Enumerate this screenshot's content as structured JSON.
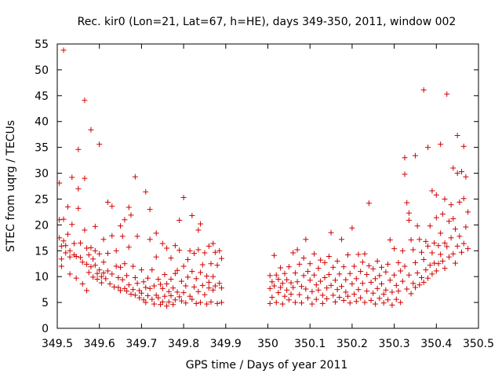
{
  "chart_data": {
    "type": "scatter",
    "title": "Rec. kir0 (Lon=21, Lat=67, h=HE), days 349-350, 2011, window 002",
    "xlabel": "GPS time / Days of year 2011",
    "ylabel": "STEC from uqrg / TECUs",
    "xlim": [
      349.5,
      350.5
    ],
    "ylim": [
      0,
      55
    ],
    "xticks": [
      349.5,
      349.6,
      349.7,
      349.8,
      349.9,
      350,
      350.1,
      350.2,
      350.3,
      350.4,
      350.5
    ],
    "xtick_labels": [
      "349.5",
      "349.6",
      "349.7",
      "349.8",
      "349.9",
      "350",
      "350.1",
      "350.2",
      "350.3",
      "350.4",
      "350.5"
    ],
    "yticks": [
      0,
      5,
      10,
      15,
      20,
      25,
      30,
      35,
      40,
      45,
      50,
      55
    ],
    "ytick_labels": [
      "0",
      "5",
      "10",
      "15",
      "20",
      "25",
      "30",
      "35",
      "40",
      "45",
      "50",
      "55"
    ],
    "grid": false,
    "legend": "none",
    "marker": "plus",
    "color": "#d00000",
    "points": [
      [
        349.505,
        28.1
      ],
      [
        349.505,
        21.0
      ],
      [
        349.505,
        17.5
      ],
      [
        349.51,
        15.9
      ],
      [
        349.51,
        13.4
      ],
      [
        349.51,
        12.0
      ],
      [
        349.515,
        53.8
      ],
      [
        349.515,
        21.1
      ],
      [
        349.515,
        16.9
      ],
      [
        349.52,
        16.0
      ],
      [
        349.52,
        14.6
      ],
      [
        349.525,
        23.5
      ],
      [
        349.525,
        18.2
      ],
      [
        349.53,
        15.0
      ],
      [
        349.53,
        13.8
      ],
      [
        349.53,
        10.5
      ],
      [
        349.535,
        29.2
      ],
      [
        349.535,
        20.1
      ],
      [
        349.54,
        16.4
      ],
      [
        349.54,
        14.2
      ],
      [
        349.545,
        13.9
      ],
      [
        349.545,
        9.7
      ],
      [
        349.55,
        34.6
      ],
      [
        349.55,
        27.0
      ],
      [
        349.55,
        23.2
      ],
      [
        349.555,
        16.5
      ],
      [
        349.555,
        13.7
      ],
      [
        349.56,
        12.8
      ],
      [
        349.56,
        8.6
      ],
      [
        349.565,
        44.1
      ],
      [
        349.565,
        29.0
      ],
      [
        349.565,
        19.0
      ],
      [
        349.57,
        15.5
      ],
      [
        349.57,
        12.4
      ],
      [
        349.57,
        7.3
      ],
      [
        349.575,
        14.2
      ],
      [
        349.575,
        10.8
      ],
      [
        349.58,
        38.4
      ],
      [
        349.58,
        15.6
      ],
      [
        349.58,
        11.9
      ],
      [
        349.585,
        13.4
      ],
      [
        349.585,
        9.9
      ],
      [
        349.59,
        19.7
      ],
      [
        349.59,
        15.0
      ],
      [
        349.59,
        12.2
      ],
      [
        349.595,
        10.6
      ],
      [
        349.595,
        9.5
      ],
      [
        349.6,
        35.6
      ],
      [
        349.6,
        14.4
      ],
      [
        349.6,
        11.3
      ],
      [
        349.605,
        10.0
      ],
      [
        349.605,
        8.8
      ],
      [
        349.61,
        17.2
      ],
      [
        349.61,
        12.8
      ],
      [
        349.61,
        10.7
      ],
      [
        349.615,
        9.6
      ],
      [
        349.62,
        24.4
      ],
      [
        349.62,
        14.5
      ],
      [
        349.62,
        11.1
      ],
      [
        349.625,
        8.6
      ],
      [
        349.63,
        23.6
      ],
      [
        349.63,
        17.9
      ],
      [
        349.63,
        10.5
      ],
      [
        349.635,
        8.0
      ],
      [
        349.64,
        15.0
      ],
      [
        349.64,
        12.0
      ],
      [
        349.645,
        9.8
      ],
      [
        349.645,
        7.9
      ],
      [
        349.65,
        19.8
      ],
      [
        349.65,
        11.8
      ],
      [
        349.65,
        7.3
      ],
      [
        349.655,
        17.8
      ],
      [
        349.655,
        9.4
      ],
      [
        349.66,
        21.0
      ],
      [
        349.66,
        12.5
      ],
      [
        349.66,
        7.7
      ],
      [
        349.665,
        10.2
      ],
      [
        349.665,
        7.2
      ],
      [
        349.67,
        23.4
      ],
      [
        349.67,
        15.7
      ],
      [
        349.67,
        8.4
      ],
      [
        349.675,
        21.9
      ],
      [
        349.675,
        6.6
      ],
      [
        349.68,
        12.0
      ],
      [
        349.68,
        7.5
      ],
      [
        349.685,
        29.3
      ],
      [
        349.685,
        9.8
      ],
      [
        349.685,
        6.4
      ],
      [
        349.69,
        17.8
      ],
      [
        349.69,
        8.7
      ],
      [
        349.695,
        7.3
      ],
      [
        349.695,
        5.9
      ],
      [
        349.7,
        11.3
      ],
      [
        349.7,
        6.8
      ],
      [
        349.705,
        9.0
      ],
      [
        349.705,
        5.5
      ],
      [
        349.71,
        26.4
      ],
      [
        349.71,
        7.9
      ],
      [
        349.71,
        5.0
      ],
      [
        349.715,
        9.7
      ],
      [
        349.715,
        6.3
      ],
      [
        349.72,
        23.0
      ],
      [
        349.72,
        17.2
      ],
      [
        349.72,
        7.7
      ],
      [
        349.725,
        11.3
      ],
      [
        349.725,
        5.6
      ],
      [
        349.73,
        8.2
      ],
      [
        349.73,
        4.7
      ],
      [
        349.735,
        18.4
      ],
      [
        349.735,
        13.8
      ],
      [
        349.735,
        6.4
      ],
      [
        349.74,
        9.5
      ],
      [
        349.74,
        5.9
      ],
      [
        349.745,
        8.5
      ],
      [
        349.745,
        4.6
      ],
      [
        349.75,
        16.4
      ],
      [
        349.75,
        7.7
      ],
      [
        349.75,
        5.1
      ],
      [
        349.755,
        10.4
      ],
      [
        349.755,
        6.2
      ],
      [
        349.76,
        15.5
      ],
      [
        349.76,
        8.6
      ],
      [
        349.76,
        4.3
      ],
      [
        349.765,
        7.1
      ],
      [
        349.765,
        5.1
      ],
      [
        349.77,
        13.6
      ],
      [
        349.77,
        9.5
      ],
      [
        349.77,
        6.3
      ],
      [
        349.775,
        7.8
      ],
      [
        349.775,
        4.6
      ],
      [
        349.78,
        16.0
      ],
      [
        349.78,
        10.6
      ],
      [
        349.78,
        5.5
      ],
      [
        349.785,
        11.2
      ],
      [
        349.785,
        7.0
      ],
      [
        349.79,
        20.9
      ],
      [
        349.79,
        15.1
      ],
      [
        349.79,
        6.1
      ],
      [
        349.795,
        9.1
      ],
      [
        349.795,
        5.3
      ],
      [
        349.8,
        25.3
      ],
      [
        349.8,
        12.0
      ],
      [
        349.8,
        6.9
      ],
      [
        349.805,
        8.2
      ],
      [
        349.805,
        4.9
      ],
      [
        349.81,
        13.3
      ],
      [
        349.81,
        9.9
      ],
      [
        349.815,
        15.0
      ],
      [
        349.815,
        6.2
      ],
      [
        349.82,
        21.8
      ],
      [
        349.82,
        11.0
      ],
      [
        349.82,
        5.6
      ],
      [
        349.825,
        14.5
      ],
      [
        349.825,
        8.0
      ],
      [
        349.83,
        9.6
      ],
      [
        349.83,
        4.8
      ],
      [
        349.835,
        19.0
      ],
      [
        349.835,
        15.2
      ],
      [
        349.835,
        7.1
      ],
      [
        349.84,
        20.2
      ],
      [
        349.84,
        10.8
      ],
      [
        349.84,
        5.0
      ],
      [
        349.845,
        12.3
      ],
      [
        349.845,
        8.3
      ],
      [
        349.85,
        14.6
      ],
      [
        349.85,
        6.5
      ],
      [
        349.855,
        10.1
      ],
      [
        349.855,
        4.7
      ],
      [
        349.86,
        15.9
      ],
      [
        349.86,
        8.9
      ],
      [
        349.86,
        7.8
      ],
      [
        349.865,
        12.5
      ],
      [
        349.865,
        5.1
      ],
      [
        349.87,
        16.4
      ],
      [
        349.87,
        10.0
      ],
      [
        349.87,
        7.4
      ],
      [
        349.875,
        14.7
      ],
      [
        349.875,
        8.2
      ],
      [
        349.88,
        12.2
      ],
      [
        349.88,
        4.8
      ],
      [
        349.885,
        15.0
      ],
      [
        349.885,
        8.7
      ],
      [
        349.89,
        13.5
      ],
      [
        349.89,
        7.8
      ],
      [
        349.89,
        5.0
      ],
      [
        350.005,
        10.2
      ],
      [
        350.005,
        7.7
      ],
      [
        350.005,
        4.8
      ],
      [
        350.01,
        9.0
      ],
      [
        350.01,
        6.0
      ],
      [
        350.015,
        14.1
      ],
      [
        350.015,
        8.2
      ],
      [
        350.02,
        10.3
      ],
      [
        350.02,
        5.0
      ],
      [
        350.025,
        9.5
      ],
      [
        350.025,
        6.9
      ],
      [
        350.03,
        11.7
      ],
      [
        350.03,
        7.9
      ],
      [
        350.035,
        8.7
      ],
      [
        350.035,
        4.7
      ],
      [
        350.04,
        10.6
      ],
      [
        350.04,
        6.2
      ],
      [
        350.045,
        9.4
      ],
      [
        350.045,
        7.4
      ],
      [
        350.05,
        11.9
      ],
      [
        350.05,
        5.5
      ],
      [
        350.055,
        8.8
      ],
      [
        350.055,
        6.6
      ],
      [
        350.06,
        14.6
      ],
      [
        350.06,
        7.9
      ],
      [
        350.065,
        10.7
      ],
      [
        350.065,
        5.0
      ],
      [
        350.07,
        15.2
      ],
      [
        350.07,
        9.0
      ],
      [
        350.075,
        12.4
      ],
      [
        350.075,
        6.5
      ],
      [
        350.08,
        8.1
      ],
      [
        350.08,
        4.9
      ],
      [
        350.085,
        13.6
      ],
      [
        350.085,
        10.2
      ],
      [
        350.09,
        17.2
      ],
      [
        350.09,
        7.6
      ],
      [
        350.095,
        11.0
      ],
      [
        350.095,
        5.9
      ],
      [
        350.1,
        12.5
      ],
      [
        350.1,
        9.3
      ],
      [
        350.105,
        7.1
      ],
      [
        350.105,
        4.7
      ],
      [
        350.11,
        14.4
      ],
      [
        350.11,
        10.3
      ],
      [
        350.115,
        8.4
      ],
      [
        350.115,
        5.6
      ],
      [
        350.12,
        11.6
      ],
      [
        350.12,
        7.4
      ],
      [
        350.125,
        13.2
      ],
      [
        350.125,
        9.1
      ],
      [
        350.13,
        6.4
      ],
      [
        350.13,
        4.8
      ],
      [
        350.135,
        12.7
      ],
      [
        350.135,
        9.8
      ],
      [
        350.14,
        7.8
      ],
      [
        350.14,
        5.7
      ],
      [
        350.145,
        13.9
      ],
      [
        350.145,
        10.4
      ],
      [
        350.15,
        18.5
      ],
      [
        350.15,
        8.3
      ],
      [
        350.155,
        11.8
      ],
      [
        350.155,
        6.4
      ],
      [
        350.16,
        9.3
      ],
      [
        350.16,
        5.1
      ],
      [
        350.165,
        13.0
      ],
      [
        350.165,
        7.5
      ],
      [
        350.17,
        10.5
      ],
      [
        350.17,
        6.0
      ],
      [
        350.175,
        17.2
      ],
      [
        350.175,
        8.1
      ],
      [
        350.18,
        11.9
      ],
      [
        350.18,
        5.4
      ],
      [
        350.185,
        9.4
      ],
      [
        350.185,
        7.0
      ],
      [
        350.19,
        14.2
      ],
      [
        350.19,
        6.2
      ],
      [
        350.195,
        10.6
      ],
      [
        350.195,
        4.9
      ],
      [
        350.2,
        19.4
      ],
      [
        350.2,
        8.6
      ],
      [
        350.205,
        12.0
      ],
      [
        350.205,
        6.6
      ],
      [
        350.21,
        9.6
      ],
      [
        350.21,
        5.2
      ],
      [
        350.215,
        14.3
      ],
      [
        350.215,
        7.5
      ],
      [
        350.22,
        11.0
      ],
      [
        350.22,
        5.9
      ],
      [
        350.225,
        12.8
      ],
      [
        350.225,
        8.7
      ],
      [
        350.23,
        14.4
      ],
      [
        350.23,
        5.0
      ],
      [
        350.235,
        10.4
      ],
      [
        350.235,
        7.2
      ],
      [
        350.24,
        24.2
      ],
      [
        350.24,
        12.1
      ],
      [
        350.245,
        8.9
      ],
      [
        350.245,
        5.4
      ],
      [
        350.25,
        11.5
      ],
      [
        350.25,
        6.8
      ],
      [
        350.255,
        9.6
      ],
      [
        350.255,
        4.7
      ],
      [
        350.26,
        13.0
      ],
      [
        350.26,
        7.7
      ],
      [
        350.265,
        10.2
      ],
      [
        350.265,
        5.8
      ],
      [
        350.27,
        11.8
      ],
      [
        350.27,
        8.6
      ],
      [
        350.275,
        6.6
      ],
      [
        350.275,
        4.9
      ],
      [
        350.28,
        10.9
      ],
      [
        350.28,
        7.4
      ],
      [
        350.285,
        12.4
      ],
      [
        350.285,
        5.5
      ],
      [
        350.29,
        17.1
      ],
      [
        350.29,
        9.3
      ],
      [
        350.295,
        7.0
      ],
      [
        350.295,
        4.5
      ],
      [
        350.3,
        15.4
      ],
      [
        350.3,
        10.3
      ],
      [
        350.305,
        8.3
      ],
      [
        350.305,
        5.6
      ],
      [
        350.31,
        12.7
      ],
      [
        350.31,
        7.2
      ],
      [
        350.315,
        11.1
      ],
      [
        350.315,
        5.0
      ],
      [
        350.32,
        15.0
      ],
      [
        350.32,
        9.1
      ],
      [
        350.325,
        33.0
      ],
      [
        350.325,
        29.8
      ],
      [
        350.325,
        12.0
      ],
      [
        350.33,
        24.3
      ],
      [
        350.33,
        7.6
      ],
      [
        350.335,
        22.3
      ],
      [
        350.335,
        20.9
      ],
      [
        350.335,
        10.3
      ],
      [
        350.34,
        17.1
      ],
      [
        350.34,
        6.7
      ],
      [
        350.345,
        15.2
      ],
      [
        350.345,
        8.7
      ],
      [
        350.35,
        33.4
      ],
      [
        350.35,
        12.7
      ],
      [
        350.35,
        7.9
      ],
      [
        350.355,
        19.8
      ],
      [
        350.355,
        10.7
      ],
      [
        350.36,
        17.2
      ],
      [
        350.36,
        8.4
      ],
      [
        350.365,
        14.7
      ],
      [
        350.365,
        9.8
      ],
      [
        350.37,
        46.1
      ],
      [
        350.37,
        13.3
      ],
      [
        350.37,
        8.9
      ],
      [
        350.375,
        16.8
      ],
      [
        350.375,
        11.3
      ],
      [
        350.38,
        35.0
      ],
      [
        350.38,
        15.9
      ],
      [
        350.38,
        9.7
      ],
      [
        350.385,
        19.8
      ],
      [
        350.385,
        12.2
      ],
      [
        350.39,
        26.6
      ],
      [
        350.39,
        14.6
      ],
      [
        350.39,
        10.5
      ],
      [
        350.395,
        16.5
      ],
      [
        350.395,
        12.6
      ],
      [
        350.4,
        25.8
      ],
      [
        350.4,
        21.4
      ],
      [
        350.4,
        11.1
      ],
      [
        350.405,
        16.0
      ],
      [
        350.405,
        12.5
      ],
      [
        350.41,
        35.6
      ],
      [
        350.41,
        18.4
      ],
      [
        350.41,
        14.3
      ],
      [
        350.415,
        22.1
      ],
      [
        350.415,
        13.0
      ],
      [
        350.42,
        25.0
      ],
      [
        350.42,
        16.5
      ],
      [
        350.42,
        11.6
      ],
      [
        350.425,
        45.3
      ],
      [
        350.425,
        15.8
      ],
      [
        350.43,
        20.7
      ],
      [
        350.43,
        13.8
      ],
      [
        350.435,
        23.9
      ],
      [
        350.435,
        17.5
      ],
      [
        350.44,
        31.0
      ],
      [
        350.44,
        21.2
      ],
      [
        350.44,
        14.4
      ],
      [
        350.445,
        19.2
      ],
      [
        350.445,
        12.6
      ],
      [
        350.45,
        37.3
      ],
      [
        350.45,
        30.0
      ],
      [
        350.45,
        15.9
      ],
      [
        350.455,
        24.4
      ],
      [
        350.455,
        17.8
      ],
      [
        350.46,
        30.3
      ],
      [
        350.46,
        14.7
      ],
      [
        350.465,
        35.2
      ],
      [
        350.465,
        25.1
      ],
      [
        350.465,
        16.4
      ],
      [
        350.47,
        29.3
      ],
      [
        350.47,
        19.6
      ],
      [
        350.475,
        22.5
      ],
      [
        350.475,
        15.4
      ]
    ]
  }
}
